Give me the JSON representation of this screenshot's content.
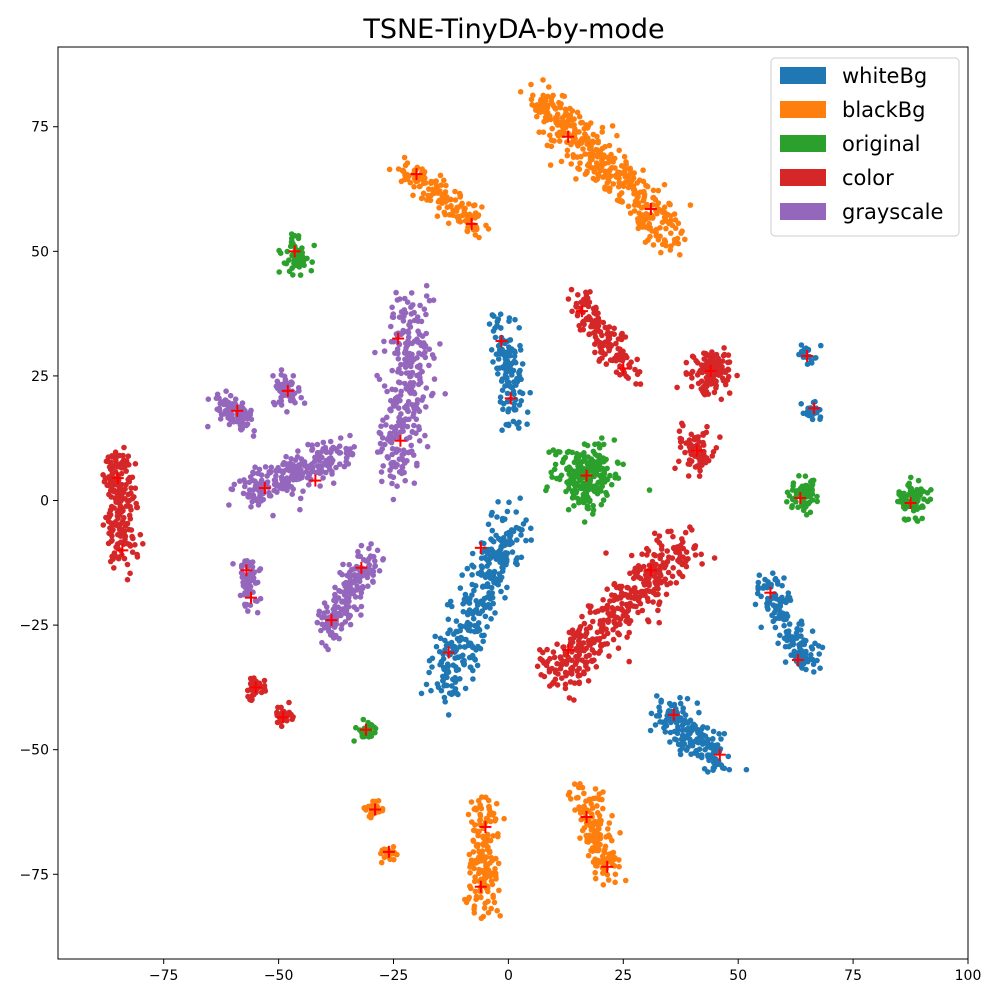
{
  "chart_data": {
    "type": "scatter",
    "title": "TSNE-TinyDA-by-mode",
    "xlabel": "",
    "ylabel": "",
    "xlim": [
      -98,
      100
    ],
    "ylim": [
      -92,
      91
    ],
    "x_ticks": [
      -75,
      -50,
      -25,
      0,
      25,
      50,
      75,
      100
    ],
    "y_ticks": [
      -75,
      -50,
      -25,
      0,
      25,
      50,
      75
    ],
    "x_tick_labels": [
      "−75",
      "−50",
      "−25",
      "0",
      "25",
      "50",
      "75",
      "100"
    ],
    "y_tick_labels": [
      "−75",
      "−50",
      "−25",
      "0",
      "25",
      "50",
      "75"
    ],
    "grid": false,
    "legend_position": "top-right",
    "centroid_marker": {
      "shape": "plus",
      "color": "#ff0000"
    },
    "series": [
      {
        "name": "whiteBg",
        "color": "#1f77b4",
        "clusters": [
          {
            "x": [
              -2,
              2
            ],
            "y": [
              36,
              16
            ],
            "n": 130,
            "spread": 1.6,
            "centroid": [
              [
                -1.5,
                32
              ],
              [
                0.5,
                20.5
              ]
            ]
          },
          {
            "x": [
              1,
              -14
            ],
            "y": [
              -4,
              -38
            ],
            "n": 330,
            "spread": 2.4,
            "centroid": [
              [
                -6,
                -9.5
              ],
              [
                -13,
                -30.5
              ]
            ]
          },
          {
            "x": [
              56,
              65
            ],
            "y": [
              -16,
              -34
            ],
            "n": 150,
            "spread": 1.6,
            "centroid": [
              [
                57,
                -18.5
              ],
              [
                63,
                -32
              ]
            ]
          },
          {
            "x": [
              34,
              47
            ],
            "y": [
              -42,
              -53
            ],
            "n": 180,
            "spread": 2.0,
            "centroid": [
              [
                36,
                -43
              ],
              [
                46,
                -51
              ]
            ]
          },
          {
            "x": [
              65,
              65
            ],
            "y": [
              29,
              29
            ],
            "n": 25,
            "spread": 1.2,
            "centroid": [
              [
                65,
                29
              ]
            ]
          },
          {
            "x": [
              66,
              66
            ],
            "y": [
              18,
              18
            ],
            "n": 25,
            "spread": 1.2,
            "centroid": [
              [
                66.5,
                18.5
              ]
            ]
          }
        ]
      },
      {
        "name": "blackBg",
        "color": "#ff7f0e",
        "clusters": [
          {
            "x": [
              6,
              36
            ],
            "y": [
              81,
              53
            ],
            "n": 420,
            "spread": 2.2,
            "centroid": [
              [
                13,
                73
              ],
              [
                31,
                58.5
              ]
            ]
          },
          {
            "x": [
              -23,
              -6
            ],
            "y": [
              67,
              55
            ],
            "n": 150,
            "spread": 1.5,
            "centroid": [
              [
                -20,
                65.5
              ],
              [
                -8,
                55.5
              ]
            ]
          },
          {
            "x": [
              -29,
              -29
            ],
            "y": [
              -62,
              -62
            ],
            "n": 25,
            "spread": 1.0,
            "centroid": [
              [
                -29,
                -62
              ]
            ]
          },
          {
            "x": [
              -26,
              -26
            ],
            "y": [
              -71,
              -71
            ],
            "n": 20,
            "spread": 0.9,
            "centroid": [
              [
                -26,
                -70.5
              ]
            ]
          },
          {
            "x": [
              -5,
              -6
            ],
            "y": [
              -61,
              -82
            ],
            "n": 170,
            "spread": 1.8,
            "centroid": [
              [
                -5,
                -65.5
              ],
              [
                -6,
                -77.5
              ]
            ]
          },
          {
            "x": [
              16,
              22
            ],
            "y": [
              -58,
              -75
            ],
            "n": 150,
            "spread": 1.6,
            "centroid": [
              [
                17,
                -63.5
              ],
              [
                21.5,
                -73.5
              ]
            ]
          }
        ]
      },
      {
        "name": "original",
        "color": "#2ca02c",
        "clusters": [
          {
            "x": [
              -46,
              -46
            ],
            "y": [
              49,
              49
            ],
            "n": 60,
            "spread": 1.6,
            "centroid": [
              [
                -46.5,
                50
              ]
            ]
          },
          {
            "x": [
              17,
              17
            ],
            "y": [
              5,
              5
            ],
            "n": 240,
            "spread": 3.2,
            "centroid": [
              [
                17,
                5
              ]
            ]
          },
          {
            "x": [
              64,
              64
            ],
            "y": [
              1,
              1
            ],
            "n": 70,
            "spread": 1.6,
            "centroid": [
              [
                63.5,
                0.5
              ]
            ]
          },
          {
            "x": [
              88,
              88
            ],
            "y": [
              0,
              0
            ],
            "n": 80,
            "spread": 1.8,
            "centroid": [
              [
                87.5,
                -0.5
              ]
            ]
          },
          {
            "x": [
              -31,
              -31
            ],
            "y": [
              -46,
              -46
            ],
            "n": 30,
            "spread": 1.1,
            "centroid": [
              [
                -31,
                -46
              ]
            ]
          }
        ]
      },
      {
        "name": "color",
        "color": "#d62728",
        "clusters": [
          {
            "x": [
              -85,
              -84
            ],
            "y": [
              9,
              -12
            ],
            "n": 200,
            "spread": 1.6,
            "centroid": [
              [
                -85,
                4.5
              ],
              [
                -84,
                -10
              ]
            ]
          },
          {
            "x": [
              15,
              26
            ],
            "y": [
              40,
              25
            ],
            "n": 150,
            "spread": 1.7,
            "centroid": [
              [
                16,
                38
              ],
              [
                25,
                26.5
              ]
            ]
          },
          {
            "x": [
              44,
              44
            ],
            "y": [
              26,
              26
            ],
            "n": 120,
            "spread": 2.2,
            "centroid": [
              [
                44,
                26
              ]
            ]
          },
          {
            "x": [
              41,
              41
            ],
            "y": [
              10,
              10
            ],
            "n": 80,
            "spread": 2.0,
            "centroid": [
              [
                41,
                10
              ]
            ]
          },
          {
            "x": [
              38,
              10
            ],
            "y": [
              -9,
              -35
            ],
            "n": 420,
            "spread": 2.6,
            "centroid": [
              [
                31,
                -14
              ],
              [
                13,
                -30
              ]
            ]
          },
          {
            "x": [
              -55,
              -55
            ],
            "y": [
              -37.5,
              -37.5
            ],
            "n": 40,
            "spread": 1.0,
            "centroid": [
              [
                -55,
                -37.5
              ]
            ]
          },
          {
            "x": [
              -49,
              -49
            ],
            "y": [
              -43.5,
              -43.5
            ],
            "n": 30,
            "spread": 0.9,
            "centroid": [
              [
                -49,
                -43.5
              ]
            ]
          }
        ]
      },
      {
        "name": "grayscale",
        "color": "#9467bd",
        "clusters": [
          {
            "x": [
              -21,
              -24
            ],
            "y": [
              39,
              5
            ],
            "n": 300,
            "spread": 2.6,
            "centroid": [
              [
                -24,
                32.5
              ],
              [
                -23.5,
                12
              ]
            ]
          },
          {
            "x": [
              -62,
              -56
            ],
            "y": [
              19,
              16
            ],
            "n": 90,
            "spread": 1.5,
            "centroid": [
              [
                -59,
                18
              ]
            ]
          },
          {
            "x": [
              -49,
              -48
            ],
            "y": [
              24,
              20
            ],
            "n": 60,
            "spread": 1.4,
            "centroid": [
              [
                -48,
                22
              ]
            ]
          },
          {
            "x": [
              -57,
              -36
            ],
            "y": [
              1,
              10
            ],
            "n": 250,
            "spread": 1.9,
            "centroid": [
              [
                -53,
                2.5
              ],
              [
                -42,
                4
              ]
            ]
          },
          {
            "x": [
              -57,
              -56
            ],
            "y": [
              -13,
              -21
            ],
            "n": 60,
            "spread": 1.2,
            "centroid": [
              [
                -57,
                -14
              ],
              [
                -56,
                -19.5
              ]
            ]
          },
          {
            "x": [
              -30,
              -40
            ],
            "y": [
              -12,
              -27
            ],
            "n": 180,
            "spread": 1.7,
            "centroid": [
              [
                -32,
                -13.5
              ],
              [
                -38.5,
                -24
              ]
            ]
          }
        ]
      }
    ]
  }
}
